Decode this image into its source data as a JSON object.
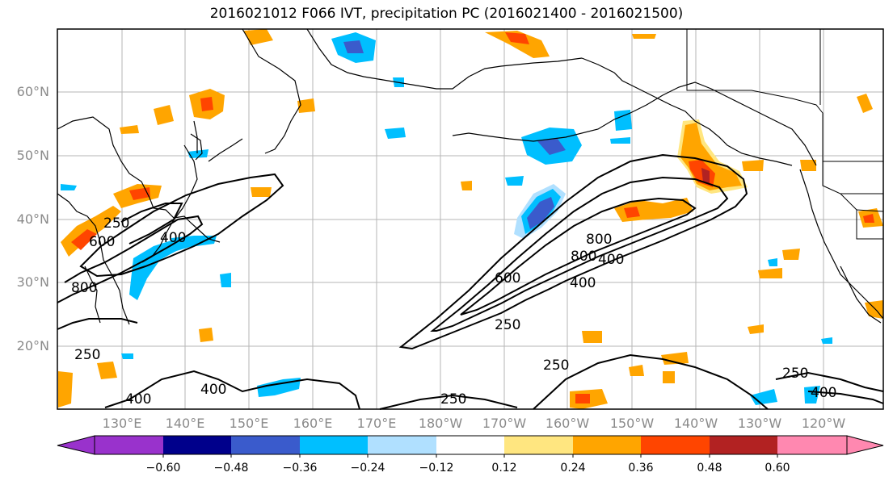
{
  "title": "2016021012 F066 IVT, precipitation PC (2016021400 - 2016021500)",
  "lat_labels": [
    "60°N",
    "50°N",
    "40°N",
    "30°N",
    "20°N"
  ],
  "lon_labels": [
    "130°E",
    "140°E",
    "150°E",
    "160°E",
    "170°E",
    "180°W",
    "170°W",
    "160°W",
    "150°W",
    "140°W",
    "130°W",
    "120°W"
  ],
  "contour_labels": [
    "250",
    "400",
    "600",
    "800",
    "800",
    "400",
    "250",
    "800",
    "400",
    "250",
    "600",
    "250",
    "250",
    "400",
    "400",
    "250"
  ],
  "colorbar": {
    "ticks": [
      "−0.60",
      "−0.48",
      "−0.36",
      "−0.24",
      "−0.12",
      "0.12",
      "0.24",
      "0.36",
      "0.48",
      "0.60"
    ],
    "colors": [
      "#9932cc",
      "#00008b",
      "#3a5bcc",
      "#00bfff",
      "#b0e0ff",
      "#ffffff",
      "#ffe680",
      "#ffa500",
      "#ff4500",
      "#b22222",
      "#ff88b0"
    ]
  },
  "shading_colors": {
    "light_orange": "#ffe680",
    "orange": "#ffa500",
    "red_orange": "#ff4500",
    "light_blue": "#b0e0ff",
    "cyan": "#00bfff",
    "medium_blue": "#3a5bcc"
  }
}
